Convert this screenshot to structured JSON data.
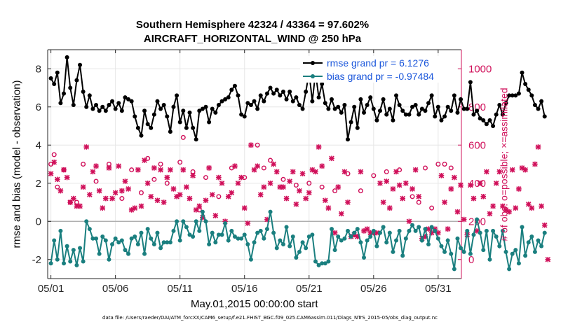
{
  "chart_data": {
    "type": "line",
    "title": "Southern Hemisphere 42324 / 43364 = 97.602%",
    "subtitle": "AIRCRAFT_HORIZONTAL_WIND @ 250 hPa",
    "xlabel": "May.01,2015 00:00:00 start",
    "ylabel_left": "rmse and bias (model - observation)",
    "ylabel_right": "# of obs: o=possible; ×=assimilated",
    "footnote": "data file: /Users/raeder/DAI/ATM_forcXX/CAM6_setup/f.e21.FHIST_BGC.f09_025.CAM6assim.011/Diags_NTrS_2015-05/obs_diag_output.nc",
    "x_ticks": [
      "05/01",
      "05/06",
      "05/11",
      "05/16",
      "05/21",
      "05/26",
      "05/31"
    ],
    "x_tick_days": [
      0,
      5,
      10,
      15,
      20,
      25,
      30
    ],
    "xlim": [
      -0.25,
      31.8
    ],
    "ylim_left": [
      -3,
      9
    ],
    "y_ticks_left": [
      -2,
      0,
      2,
      4,
      6,
      8
    ],
    "ylim_right": [
      -100,
      1100
    ],
    "y_ticks_right": [
      0,
      200,
      400,
      600,
      800,
      1000
    ],
    "step_days": 0.25,
    "grid": true,
    "legend_position": "top-right",
    "colors": {
      "rmse": "#000000",
      "bias": "#1a7f7f",
      "obs": "#d0105a",
      "zero_line": "#b0b0b0"
    },
    "series": [
      {
        "name": "rmse grand pr = 6.1276",
        "axis": "left",
        "style": "line-marker",
        "values": [
          7.5,
          7.2,
          7.8,
          6.2,
          6.7,
          8.6,
          7.0,
          6.1,
          7.4,
          8.2,
          6.8,
          6.0,
          6.6,
          5.9,
          6.1,
          5.8,
          6.0,
          5.8,
          6.1,
          6.3,
          5.9,
          6.2,
          5.8,
          6.5,
          6.4,
          6.3,
          5.5,
          4.9,
          4.5,
          5.8,
          5.1,
          4.9,
          5.6,
          6.3,
          5.9,
          6.1,
          5.5,
          4.7,
          6.0,
          6.6,
          5.2,
          5.8,
          4.9,
          5.7,
          4.9,
          4.3,
          5.8,
          5.9,
          6.0,
          5.2,
          5.9,
          5.7,
          6.1,
          6.3,
          6.4,
          6.5,
          6.9,
          7.1,
          6.6,
          5.6,
          5.5,
          6.2,
          6.1,
          6.3,
          5.9,
          6.6,
          6.3,
          6.7,
          7.0,
          6.7,
          6.9,
          6.6,
          6.8,
          6.4,
          6.8,
          6.3,
          6.5,
          6.1,
          5.9,
          6.8,
          7.8,
          6.3,
          7.8,
          6.5,
          7.2,
          6.2,
          5.9,
          6.4,
          5.9,
          6.0,
          5.7,
          6.1,
          4.3,
          5.2,
          6.0,
          4.9,
          6.4,
          5.7,
          6.1,
          6.5,
          5.9,
          5.3,
          5.8,
          6.4,
          5.6,
          5.9,
          5.3,
          6.6,
          6.1,
          5.8,
          5.6,
          5.6,
          6.0,
          6.1,
          5.6,
          5.9,
          5.8,
          6.2,
          6.6,
          5.5,
          6.0,
          5.3,
          5.5,
          6.0,
          5.8,
          6.6,
          5.7,
          6.4,
          5.9,
          5.9,
          7.3,
          5.6,
          5.8,
          5.4,
          5.3,
          5.1,
          5.3,
          5.0,
          5.6,
          6.1,
          5.6,
          6.2,
          6.6,
          6.6,
          6.6,
          6.7,
          7.8,
          7.2,
          6.9,
          6.6,
          6.1,
          5.9,
          6.3,
          5.5
        ]
      },
      {
        "name": "bias grand pr = -0.97484",
        "axis": "left",
        "style": "line-marker",
        "values": [
          -2.2,
          -1.0,
          -2.0,
          -0.5,
          -2.2,
          -1.3,
          -2.1,
          -1.5,
          -2.3,
          -1.4,
          -2.1,
          0.0,
          -0.4,
          -0.9,
          -0.9,
          -1.7,
          -0.8,
          -1.0,
          -2.0,
          -1.2,
          -0.9,
          -1.1,
          -1.0,
          -1.5,
          -1.7,
          -0.9,
          -0.8,
          -1.2,
          -0.6,
          -1.7,
          -0.4,
          -0.9,
          -1.2,
          -0.6,
          -1.4,
          -1.1,
          -1.1,
          -1.1,
          -0.5,
          0.0,
          -1.0,
          0.0,
          -0.3,
          -0.7,
          -0.8,
          0.0,
          -0.5,
          0.5,
          0.0,
          -1.2,
          -0.6,
          -1.1,
          -0.7,
          -0.7,
          -0.1,
          -1.0,
          -0.5,
          -0.8,
          -0.9,
          -0.9,
          -0.7,
          -1.2,
          -2.0,
          -1.1,
          -0.6,
          -0.5,
          -0.9,
          -0.4,
          0.5,
          -0.6,
          -1.4,
          -1.0,
          -1.2,
          -0.3,
          -1.3,
          -0.8,
          -1.9,
          -1.6,
          -1.1,
          -1.4,
          -0.8,
          -0.7,
          -2.1,
          -2.3,
          -2.2,
          -2.2,
          -2.1,
          -0.4,
          -1.5,
          -0.8,
          -1.0,
          -0.9,
          -0.5,
          -0.8,
          -0.6,
          -0.4,
          -1.1,
          -1.9,
          -1.0,
          -0.8,
          -0.5,
          -1.3,
          -0.6,
          -0.3,
          -1.1,
          -0.6,
          -1.6,
          -1.0,
          -0.5,
          -1.8,
          -0.9,
          -0.5,
          -0.2,
          -0.5,
          -0.3,
          -1.0,
          -0.4,
          -1.2,
          -0.3,
          -0.5,
          -0.9,
          -1.3,
          -1.6,
          -1.0,
          -1.7,
          -2.5,
          -0.9,
          -1.4,
          -1.6,
          -0.5,
          -1.7,
          -0.7,
          0.1,
          -0.6,
          -1.5,
          -0.5,
          -2.0,
          -0.5,
          -0.8,
          -1.3,
          -0.5,
          -1.6,
          -2.5,
          -1.7,
          -1.5,
          -2.2,
          -0.3,
          -1.8,
          -1.1,
          -0.8,
          -1.6,
          -1.0,
          -1.3,
          -0.6
        ]
      },
      {
        "name": "possible",
        "axis": "right",
        "style": "marker-o",
        "days": [
          0,
          0.25,
          0.5,
          1,
          1.5,
          2,
          2.5,
          3.5,
          4.5,
          5.5,
          6.25,
          7,
          7.5,
          8,
          8.5,
          9,
          10,
          10.25,
          11,
          11.5,
          12,
          13,
          14,
          15,
          16,
          16.5,
          17,
          18,
          19,
          20,
          21,
          22,
          23,
          24,
          25,
          26,
          27,
          28,
          28.5,
          29,
          29.5,
          30,
          30.5,
          31
        ],
        "values": [
          500,
          550,
          380,
          470,
          300,
          300,
          500,
          410,
          500,
          320,
          470,
          350,
          530,
          420,
          500,
          400,
          510,
          640,
          460,
          260,
          430,
          330,
          480,
          430,
          600,
          480,
          520,
          420,
          390,
          400,
          380,
          360,
          450,
          360,
          440,
          460,
          470,
          330,
          300,
          480,
          270,
          500,
          500,
          480
        ]
      },
      {
        "name": "assimilated",
        "axis": "right",
        "style": "marker-x",
        "values": [
          450,
          510,
          420,
          360,
          470,
          430,
          300,
          320,
          280,
          280,
          380,
          590,
          340,
          460,
          490,
          360,
          270,
          320,
          480,
          320,
          350,
          490,
          360,
          410,
          370,
          260,
          270,
          470,
          280,
          520,
          400,
          330,
          480,
          310,
          470,
          300,
          430,
          470,
          370,
          330,
          340,
          470,
          380,
          320,
          440,
          260,
          280,
          220,
          310,
          480,
          340,
          230,
          430,
          400,
          200,
          330,
          350,
          490,
          400,
          430,
          270,
          190,
          600,
          470,
          490,
          340,
          380,
          210,
          400,
          500,
          460,
          380,
          380,
          320,
          410,
          460,
          290,
          360,
          450,
          320,
          350,
          470,
          460,
          590,
          490,
          310,
          270,
          530,
          140,
          380,
          240,
          460,
          300,
          120,
          130,
          120,
          460,
          150,
          160,
          140,
          140,
          140,
          400,
          300,
          410,
          270,
          370,
          460,
          390,
          320,
          400,
          200,
          370,
          470,
          330,
          110,
          120,
          160,
          140,
          160,
          140,
          440,
          300,
          160,
          370,
          430,
          250,
          390,
          210,
          130,
          390,
          320,
          150,
          400,
          330,
          460,
          240,
          280,
          400,
          460,
          280,
          260,
          250,
          470,
          270,
          370,
          480,
          470,
          290,
          270,
          500,
          590,
          280,
          180,
          0
        ]
      }
    ]
  }
}
